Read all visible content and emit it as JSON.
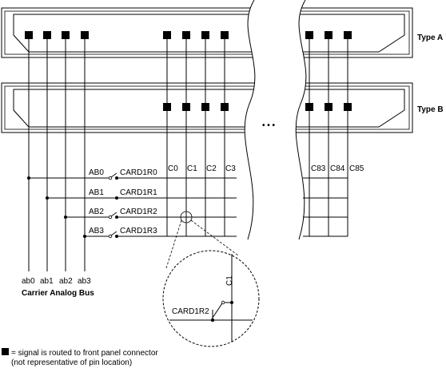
{
  "connectors": {
    "type_a_label": "Type A",
    "type_b_label": "Type B"
  },
  "ellipsis": "•  •  •",
  "columns": [
    "C0",
    "C1",
    "C2",
    "C3",
    "C83",
    "C84",
    "C85"
  ],
  "bus_switches": [
    "AB0",
    "AB1",
    "AB2",
    "AB3"
  ],
  "rows": [
    "CARD1R0",
    "CARD1R1",
    "CARD1R2",
    "CARD1R3"
  ],
  "bus_lines": [
    "ab0",
    "ab1",
    "ab2",
    "ab3"
  ],
  "bus_title": "Carrier Analog Bus",
  "zoom": {
    "column_label": "C1",
    "row_label": "CARD1R2"
  },
  "legend": {
    "line1": "= signal is routed to front panel connector",
    "line2": "(not representative of pin location)"
  }
}
